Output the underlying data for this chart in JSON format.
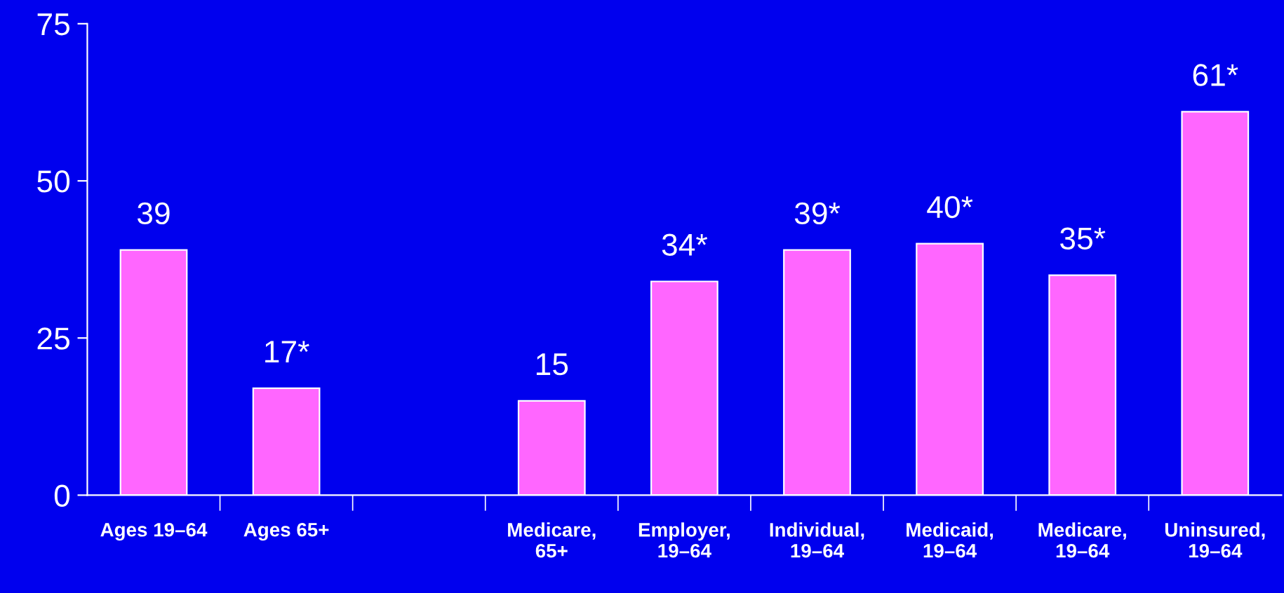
{
  "chart_data": {
    "type": "bar",
    "categories": [
      "Ages 19–64",
      "Ages 65+",
      null,
      "Medicare,\n65+",
      "Employer,\n19–64",
      "Individual,\n19–64",
      "Medicaid,\n19–64",
      "Medicare,\n19–64",
      "Uninsured,\n19–64"
    ],
    "values": [
      39,
      17,
      null,
      15,
      34,
      39,
      40,
      35,
      61
    ],
    "value_labels": [
      "39",
      "17*",
      null,
      "15",
      "34*",
      "39*",
      "40*",
      "35*",
      "61*"
    ],
    "color": "#ff66ff",
    "ylim": [
      0,
      75
    ],
    "yticks": [
      0,
      25,
      50,
      75
    ],
    "grid": false,
    "legend": false
  }
}
